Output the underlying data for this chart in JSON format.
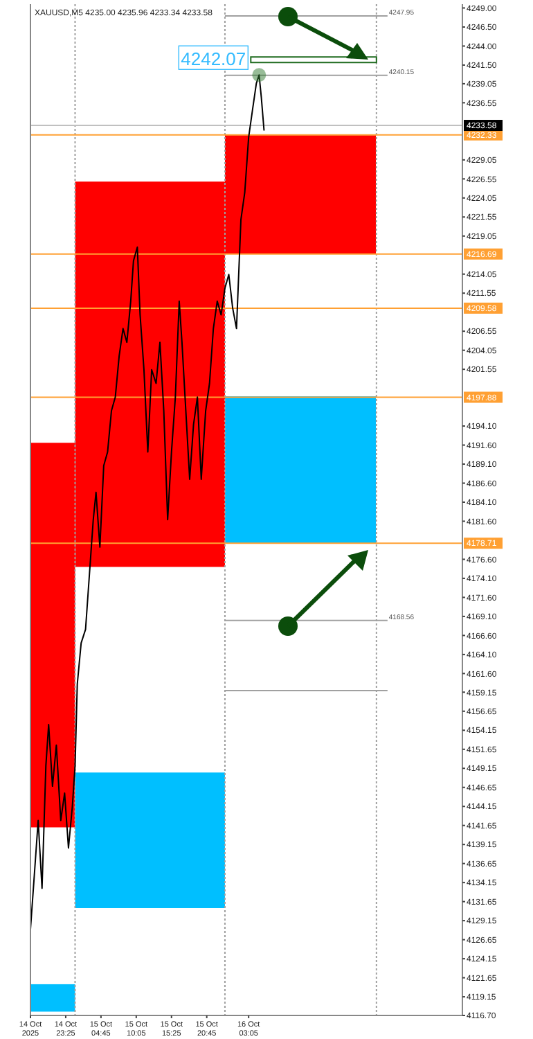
{
  "chart_data": {
    "type": "line",
    "title": "XAUUSD,M5 4235.00 4235.96 4233.34 4233.58",
    "xlim": [
      "2025-10-14T18:05",
      "2025-10-17T11:25"
    ],
    "ylim": [
      4116.7,
      4249.5
    ],
    "xticks": [
      {
        "value": "2025-10-14T18:05",
        "label": "14 Oct 2025"
      },
      {
        "value": "2025-10-14T23:25",
        "label": "14 Oct 23:25"
      },
      {
        "value": "2025-10-15T04:45",
        "label": "15 Oct 04:45"
      },
      {
        "value": "2025-10-15T10:05",
        "label": "15 Oct 10:05"
      },
      {
        "value": "2025-10-15T15:25",
        "label": "15 Oct 15:25"
      },
      {
        "value": "2025-10-15T20:45",
        "label": "15 Oct 20:45"
      },
      {
        "value": "2025-10-16T03:05",
        "label": "16 Oct 03:05"
      }
    ],
    "yticks": [
      {
        "value": 4249,
        "label": "4249.00"
      },
      {
        "value": 4246.5,
        "label": "4246.50"
      },
      {
        "value": 4244,
        "label": "4244.00"
      },
      {
        "value": 4241.5,
        "label": "4241.50"
      },
      {
        "value": 4239.05,
        "label": "4239.05"
      },
      {
        "value": 4236.55,
        "label": "4236.55"
      },
      {
        "value": 4229.05,
        "label": "4229.05"
      },
      {
        "value": 4226.55,
        "label": "4226.55"
      },
      {
        "value": 4224.05,
        "label": "4224.05"
      },
      {
        "value": 4221.55,
        "label": "4221.55"
      },
      {
        "value": 4219.05,
        "label": "4219.05"
      },
      {
        "value": 4214.05,
        "label": "4214.05"
      },
      {
        "value": 4211.55,
        "label": "4211.55"
      },
      {
        "value": 4206.55,
        "label": "4206.55"
      },
      {
        "value": 4204.05,
        "label": "4204.05"
      },
      {
        "value": 4201.55,
        "label": "4201.55"
      },
      {
        "value": 4194.1,
        "label": "4194.10"
      },
      {
        "value": 4191.6,
        "label": "4191.60"
      },
      {
        "value": 4189.1,
        "label": "4189.10"
      },
      {
        "value": 4186.6,
        "label": "4186.60"
      },
      {
        "value": 4184.1,
        "label": "4184.10"
      },
      {
        "value": 4181.6,
        "label": "4181.60"
      },
      {
        "value": 4176.6,
        "label": "4176.60"
      },
      {
        "value": 4174.1,
        "label": "4174.10"
      },
      {
        "value": 4171.6,
        "label": "4171.60"
      },
      {
        "value": 4169.1,
        "label": "4169.10"
      },
      {
        "value": 4166.6,
        "label": "4166.60"
      },
      {
        "value": 4164.1,
        "label": "4164.10"
      },
      {
        "value": 4161.6,
        "label": "4161.60"
      },
      {
        "value": 4159.15,
        "label": "4159.15"
      },
      {
        "value": 4156.65,
        "label": "4156.65"
      },
      {
        "value": 4154.15,
        "label": "4154.15"
      },
      {
        "value": 4151.65,
        "label": "4151.65"
      },
      {
        "value": 4149.15,
        "label": "4149.15"
      },
      {
        "value": 4146.65,
        "label": "4146.65"
      },
      {
        "value": 4144.15,
        "label": "4144.15"
      },
      {
        "value": 4141.65,
        "label": "4141.65"
      },
      {
        "value": 4139.15,
        "label": "4139.15"
      },
      {
        "value": 4136.65,
        "label": "4136.65"
      },
      {
        "value": 4134.15,
        "label": "4134.15"
      },
      {
        "value": 4131.65,
        "label": "4131.65"
      },
      {
        "value": 4129.15,
        "label": "4129.15"
      },
      {
        "value": 4126.65,
        "label": "4126.65"
      },
      {
        "value": 4124.15,
        "label": "4124.15"
      },
      {
        "value": 4121.65,
        "label": "4121.65"
      },
      {
        "value": 4119.15,
        "label": "4119.15"
      },
      {
        "value": 4116.7,
        "label": "4116.70"
      }
    ],
    "series": [
      {
        "type": "bar",
        "color": "#ff0000",
        "x": [
          "2025-10-14T21:25",
          "2025-10-15T12:10",
          "2025-10-16T10:55"
        ],
        "base": [
          4141.4,
          4175.6,
          4216.7
        ],
        "values": [
          50.5,
          50.6,
          15.6
        ]
      },
      {
        "type": "bar",
        "color": "#00bfff",
        "x": [
          "2025-10-14T21:25",
          "2025-10-15T12:10",
          "2025-10-16T10:55"
        ],
        "base": [
          4117.2,
          4130.8,
          4178.7
        ],
        "values": [
          3.6,
          17.8,
          19.3
        ]
      },
      {
        "color": "#000000",
        "x": [
          "2025-10-14T18:05",
          "2025-10-14T18:40",
          "2025-10-14T19:15",
          "2025-10-14T19:50",
          "2025-10-14T20:25",
          "2025-10-14T20:50",
          "2025-10-14T21:25",
          "2025-10-14T22:00",
          "2025-10-14T22:40",
          "2025-10-14T23:15",
          "2025-10-14T23:50",
          "2025-10-15T00:25",
          "2025-10-15T00:50",
          "2025-10-15T01:10",
          "2025-10-15T01:45",
          "2025-10-15T02:25",
          "2025-10-15T03:00",
          "2025-10-15T03:35",
          "2025-10-15T04:00",
          "2025-10-15T04:35",
          "2025-10-15T05:10",
          "2025-10-15T05:45",
          "2025-10-15T06:20",
          "2025-10-15T06:55",
          "2025-10-15T07:30",
          "2025-10-15T08:05",
          "2025-10-15T08:40",
          "2025-10-15T09:15",
          "2025-10-15T09:40",
          "2025-10-15T10:15",
          "2025-10-15T10:40",
          "2025-10-15T11:15",
          "2025-10-15T11:50",
          "2025-10-15T12:25",
          "2025-10-15T13:05",
          "2025-10-15T13:40",
          "2025-10-15T14:15",
          "2025-10-15T14:50",
          "2025-10-15T15:25",
          "2025-10-15T16:00",
          "2025-10-15T16:35",
          "2025-10-15T17:00",
          "2025-10-15T17:35",
          "2025-10-15T18:10",
          "2025-10-15T18:45",
          "2025-10-15T19:20",
          "2025-10-15T19:55",
          "2025-10-15T20:35",
          "2025-10-15T21:10",
          "2025-10-15T21:45",
          "2025-10-15T22:20",
          "2025-10-15T22:55",
          "2025-10-15T23:30",
          "2025-10-16T00:05",
          "2025-10-16T00:40",
          "2025-10-16T01:15",
          "2025-10-16T01:55",
          "2025-10-16T02:30",
          "2025-10-16T03:05",
          "2025-10-16T03:40",
          "2025-10-16T04:15",
          "2025-10-16T04:40",
          "2025-10-16T05:00",
          "2025-10-16T05:25"
        ],
        "values": [
          4128.0,
          4135.1,
          4142.3,
          4133.4,
          4149.5,
          4154.9,
          4146.8,
          4152.2,
          4142.3,
          4145.9,
          4138.7,
          4144.1,
          4149.5,
          4160.2,
          4165.6,
          4167.4,
          4174.6,
          4181.8,
          4185.4,
          4178.2,
          4188.9,
          4190.7,
          4196.1,
          4197.9,
          4203.3,
          4206.9,
          4205.1,
          4210.5,
          4215.8,
          4217.6,
          4208.7,
          4201.5,
          4190.7,
          4201.5,
          4199.7,
          4205.1,
          4196.1,
          4181.8,
          4190.7,
          4197.9,
          4210.5,
          4205.1,
          4196.1,
          4187.1,
          4194.3,
          4197.9,
          4187.1,
          4196.1,
          4199.7,
          4206.9,
          4210.5,
          4208.7,
          4212.2,
          4214.0,
          4209.6,
          4206.9,
          4221.2,
          4224.8,
          4232.0,
          4235.6,
          4239.1,
          4240.2,
          4237.3,
          4232.9
        ]
      }
    ],
    "ref_lines": [
      {
        "axis": "x",
        "value": "2025-10-15T00:50",
        "color": "#a0a0a0",
        "line_style": "dotted"
      },
      {
        "axis": "x",
        "value": "2025-10-15T23:30",
        "color": "#a0a0a0",
        "line_style": "dotted"
      },
      {
        "axis": "x",
        "value": "2025-10-16T22:25",
        "color": "#a0a0a0",
        "line_style": "dotted"
      },
      {
        "axis": "y",
        "value": 4232.33,
        "label": "4232.33",
        "color": "#ffa033"
      },
      {
        "axis": "y",
        "value": 4216.69,
        "label": "4216.69",
        "color": "#ffa033"
      },
      {
        "axis": "y",
        "value": 4209.58,
        "label": "4209.58",
        "color": "#ffa033"
      },
      {
        "axis": "y",
        "value": 4197.88,
        "label": "4197.88",
        "color": "#ffa033"
      },
      {
        "axis": "y",
        "value": 4178.71,
        "label": "4178.71",
        "color": "#ffa033"
      },
      {
        "axis": "y",
        "value": 4233.58,
        "label": "4233.58",
        "color": "#c0c0c0"
      },
      {
        "axis": "y",
        "value": 4247.95,
        "label": "4247.95",
        "color": "#a0a0a0",
        "line_style": "solid"
      },
      {
        "axis": "y",
        "value": 4240.15,
        "label": "4240.15",
        "color": "#a0a0a0",
        "line_style": "solid"
      },
      {
        "axis": "y",
        "value": 4168.56,
        "label": "4168.56",
        "color": "#a0a0a0",
        "line_style": "solid"
      },
      {
        "axis": "y",
        "value": 4159.35,
        "color": "#a0a0a0",
        "line_style": "solid"
      }
    ],
    "annotations": [
      "4242.07"
    ],
    "grid": false
  }
}
